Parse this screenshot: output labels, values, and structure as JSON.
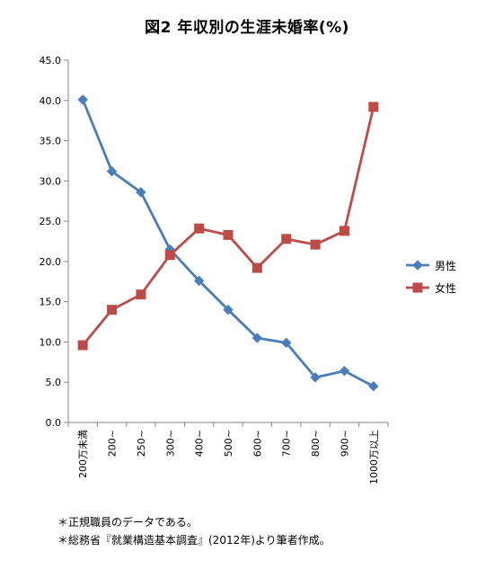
{
  "chart_data": {
    "type": "line",
    "title": "図2 年収別の生涯未婚率(%)",
    "categories": [
      "200万未満",
      "200~",
      "250~",
      "300~",
      "400~",
      "500~",
      "600~",
      "700~",
      "800~",
      "900~",
      "1000万以上"
    ],
    "ylim": [
      0,
      45
    ],
    "y_ticks": [
      "0.0",
      "5.0",
      "10.0",
      "15.0",
      "20.0",
      "25.0",
      "30.0",
      "35.0",
      "40.0",
      "45.0"
    ],
    "y_tick_values": [
      0,
      5,
      10,
      15,
      20,
      25,
      30,
      35,
      40,
      45
    ],
    "grid": false,
    "legend_position": "right",
    "series": [
      {
        "name": "男性",
        "marker": "diamond",
        "color": "#4a7ebb",
        "values": [
          40.1,
          31.2,
          28.6,
          21.5,
          17.6,
          14.0,
          10.5,
          9.9,
          5.6,
          6.4,
          4.5
        ]
      },
      {
        "name": "女性",
        "marker": "square",
        "color": "#be4b48",
        "values": [
          9.6,
          14.0,
          15.9,
          20.8,
          24.1,
          23.3,
          19.2,
          22.8,
          22.1,
          23.8,
          39.2
        ]
      }
    ]
  },
  "notes": [
    "＊正規職員のデータである。",
    "＊総務省『就業構造基本調査』(2012年)より筆者作成。"
  ]
}
